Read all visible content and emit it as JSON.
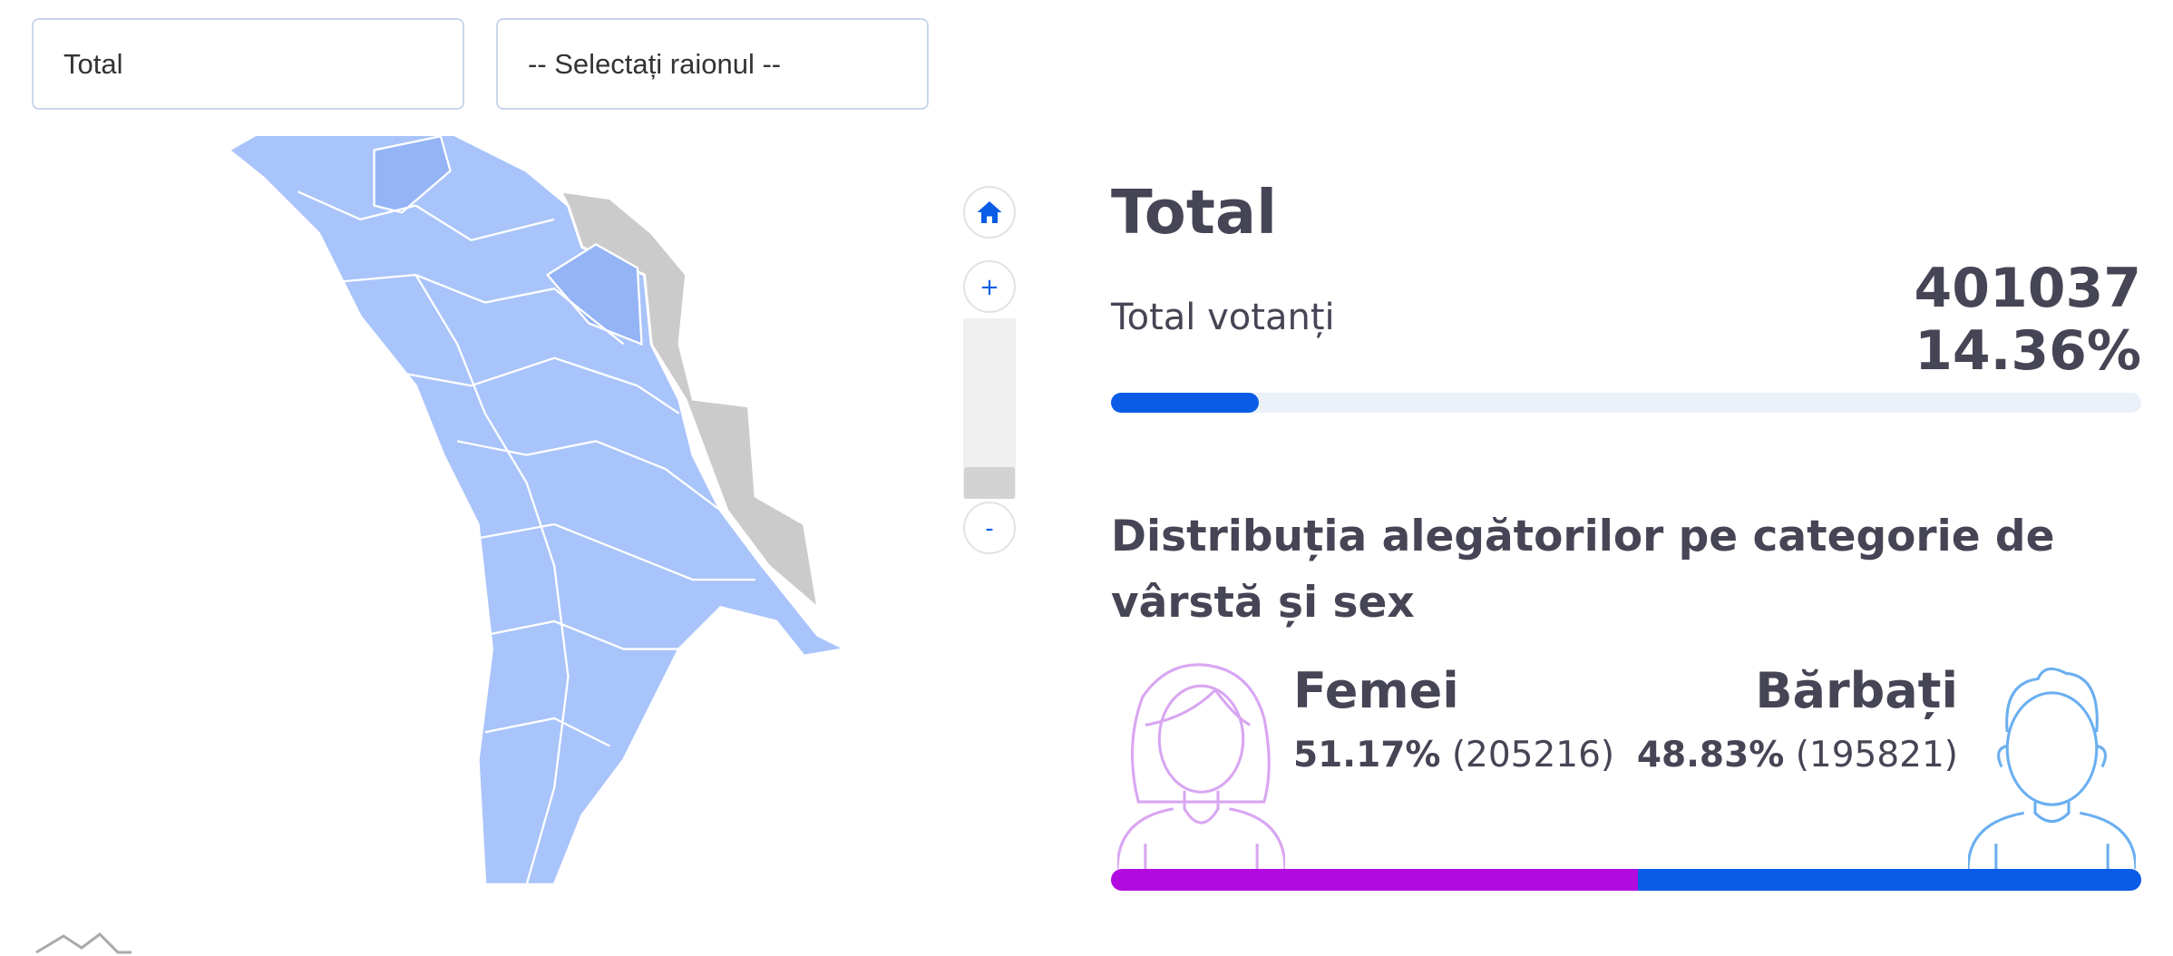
{
  "filters": {
    "region_type": "Total",
    "district": "-- Selectați raionul --"
  },
  "summary": {
    "title": "Total",
    "voters_label": "Total votanți",
    "voters_count": 401037,
    "voters_percent": {
      "value": 14.36,
      "label": "14.36%"
    }
  },
  "distribution": {
    "title": "Distribuția alegătorilor pe categorie de vârstă și sex",
    "women": {
      "label": "Femei",
      "percent": {
        "value": 51.17,
        "label": "51.17%"
      },
      "count": {
        "value": 205216,
        "label": "(205216)"
      }
    },
    "men": {
      "label": "Bărbați",
      "percent": {
        "value": 48.83,
        "label": "48.83%"
      },
      "count": {
        "value": 195821,
        "label": "(195821)"
      }
    }
  },
  "map_controls": {
    "zoom_in": "+",
    "zoom_out": "-"
  }
}
